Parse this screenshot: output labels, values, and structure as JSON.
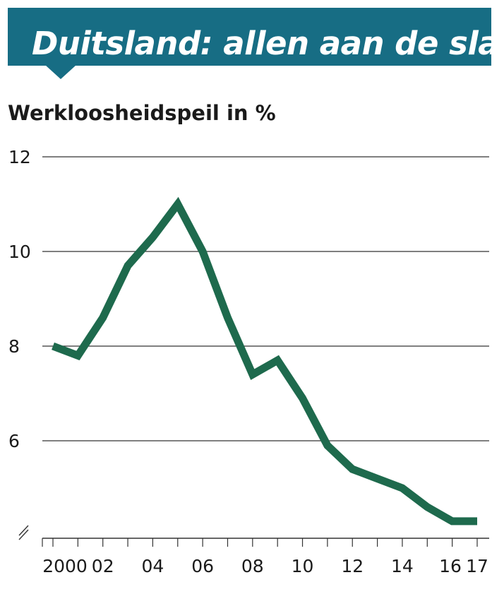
{
  "header": {
    "title": "Duitsland: allen aan de slag"
  },
  "colors": {
    "banner": "#176d84",
    "line": "#1e6a4d",
    "grid": "#333333",
    "text": "#1a1a1a"
  },
  "chart_data": {
    "type": "line",
    "title": "Duitsland: allen aan de slag",
    "subtitle": "Werkloosheidspeil in %",
    "xlabel": "",
    "ylabel": "",
    "ylim": [
      4.5,
      12
    ],
    "xlim": [
      2000,
      2017
    ],
    "y_ticks": [
      "12",
      "10",
      "8",
      "6"
    ],
    "y_tick_values": [
      12,
      10,
      8,
      6
    ],
    "x_ticks": [
      "2000",
      "02",
      "04",
      "06",
      "08",
      "10",
      "12",
      "14",
      "16",
      "17"
    ],
    "x_tick_values": [
      2000,
      2002,
      2004,
      2006,
      2008,
      2010,
      2012,
      2014,
      2016,
      2017
    ],
    "grid": true,
    "axis_break": true,
    "x": [
      2000,
      2001,
      2002,
      2003,
      2004,
      2005,
      2006,
      2007,
      2008,
      2009,
      2010,
      2011,
      2012,
      2013,
      2014,
      2015,
      2016,
      2017
    ],
    "series": [
      {
        "values": [
          8.0,
          7.8,
          8.6,
          9.7,
          10.3,
          11.0,
          10.0,
          8.6,
          7.4,
          7.7,
          6.9,
          5.9,
          5.4,
          5.2,
          5.0,
          4.6,
          4.3,
          4.3
        ]
      }
    ]
  }
}
